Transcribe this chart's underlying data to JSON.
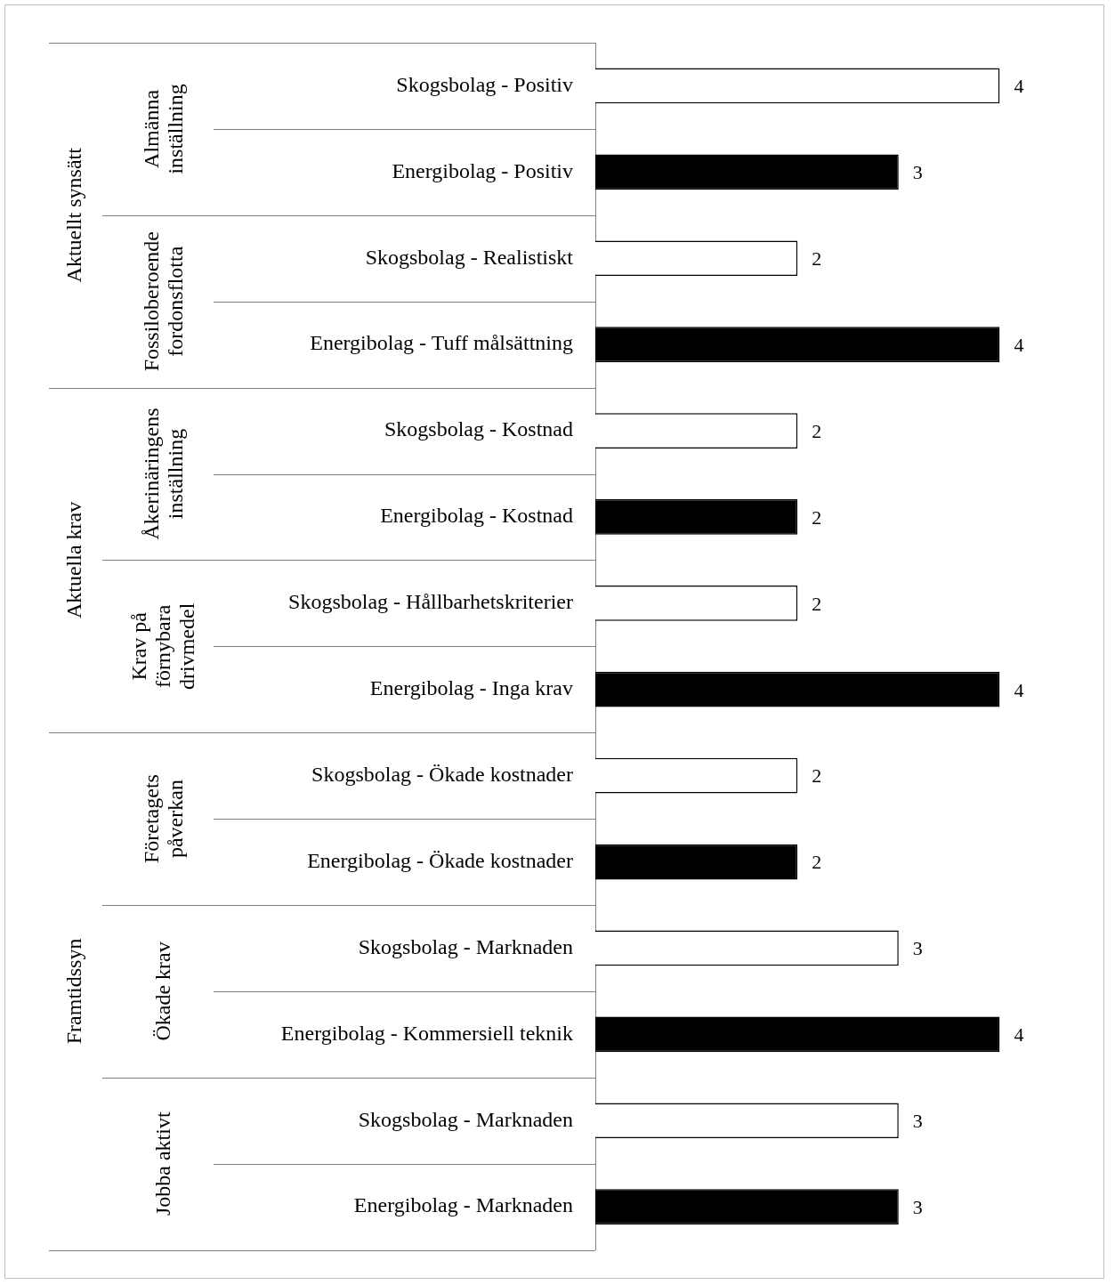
{
  "chart_data": {
    "type": "bar",
    "orientation": "horizontal",
    "categories": [
      "Skogsbolag - Positiv",
      "Energibolag - Positiv",
      "Skogsbolag - Realistiskt",
      "Energibolag - Tuff målsättning",
      "Skogsbolag - Kostnad",
      "Energibolag - Kostnad",
      "Skogsbolag - Hållbarhetskriterier",
      "Energibolag - Inga krav",
      "Skogsbolag - Ökade kostnader",
      "Energibolag - Ökade kostnader",
      "Skogsbolag - Marknaden",
      "Energibolag - Kommersiell teknik",
      "Skogsbolag - Marknaden",
      "Energibolag - Marknaden"
    ],
    "values": [
      4,
      3,
      2,
      4,
      2,
      2,
      2,
      4,
      2,
      2,
      3,
      4,
      3,
      3
    ],
    "colors": [
      "#ffffff",
      "#000000",
      "#ffffff",
      "#000000",
      "#ffffff",
      "#000000",
      "#ffffff",
      "#000000",
      "#ffffff",
      "#000000",
      "#ffffff",
      "#000000",
      "#ffffff",
      "#000000"
    ],
    "xlim": [
      0,
      5
    ],
    "data_labels": true,
    "tick_labels": "y",
    "grid": false,
    "legend": false,
    "annotations": [
      "Aktuellt synsätt",
      "Aktuella krav",
      "Framtidssyn",
      "Almänna inställning",
      "Fossiloberoende fordonsflotta",
      "Åkerinäringens inställning",
      "Krav på förnybara drivmedel",
      "Företagets påverkan",
      "Ökade krav",
      "Jobba aktivt"
    ]
  }
}
